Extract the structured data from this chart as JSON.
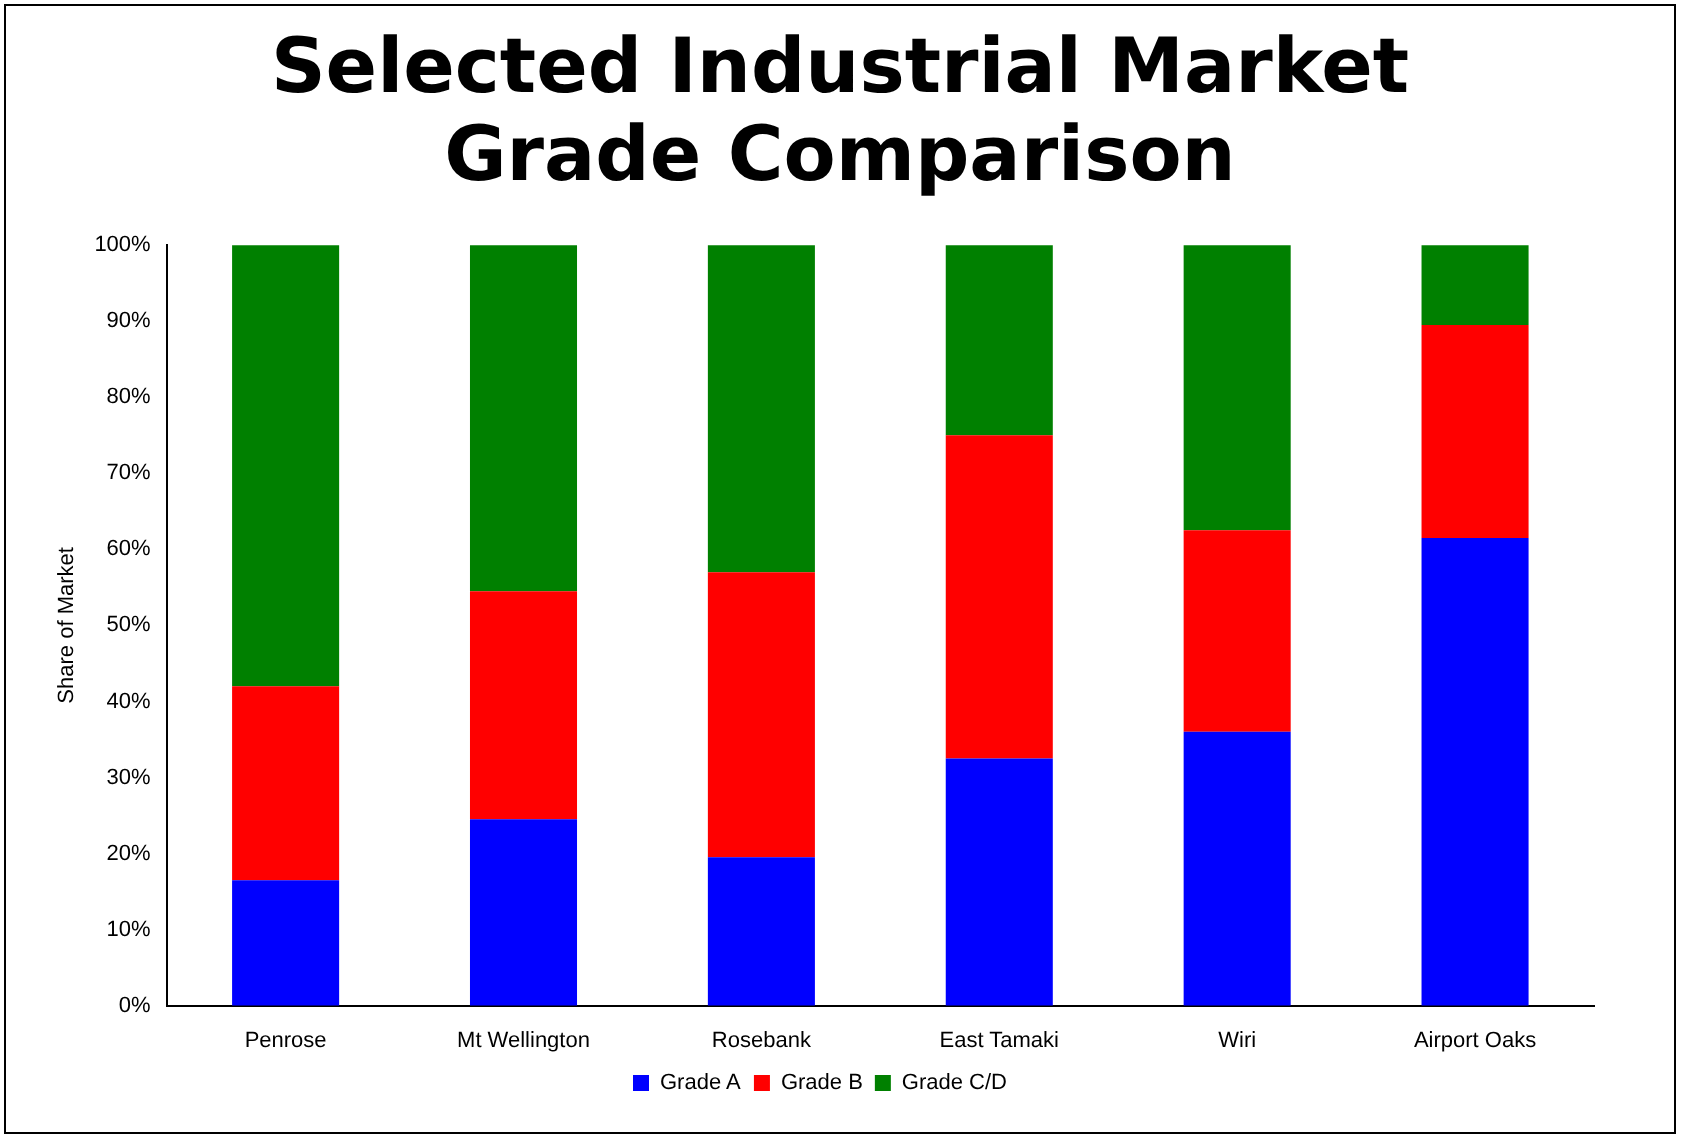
{
  "chart_data": {
    "type": "bar",
    "title": "Selected Industrial Market Grade Comparison",
    "ylabel": "Share of Market",
    "categories": [
      "Penrose",
      "Mt Wellington",
      "Rosebank",
      "East Tamaki",
      "Wiri",
      "Airport Oaks"
    ],
    "series": [
      {
        "name": "Grade A",
        "color": "#0000ff",
        "values": [
          16.5,
          24.5,
          19.5,
          32.5,
          36,
          61.5
        ]
      },
      {
        "name": "Grade B",
        "color": "#ff0000",
        "values": [
          25.5,
          30,
          37.5,
          42.5,
          26.5,
          28
        ]
      },
      {
        "name": "Grade C/D",
        "color": "#008000",
        "values": [
          58,
          45.5,
          43,
          25,
          37.5,
          10.5
        ]
      }
    ],
    "stacked": true,
    "ylim": [
      0,
      100
    ],
    "yticks": [
      {
        "value": 0,
        "label": "0%"
      },
      {
        "value": 10,
        "label": "10%"
      },
      {
        "value": 20,
        "label": "20%"
      },
      {
        "value": 30,
        "label": "30%"
      },
      {
        "value": 40,
        "label": "40%"
      },
      {
        "value": 50,
        "label": "50%"
      },
      {
        "value": 60,
        "label": "60%"
      },
      {
        "value": 70,
        "label": "70%"
      },
      {
        "value": 80,
        "label": "80%"
      },
      {
        "value": 90,
        "label": "90%"
      },
      {
        "value": 100,
        "label": "100%"
      }
    ],
    "grid": false,
    "legend": "bottom"
  }
}
